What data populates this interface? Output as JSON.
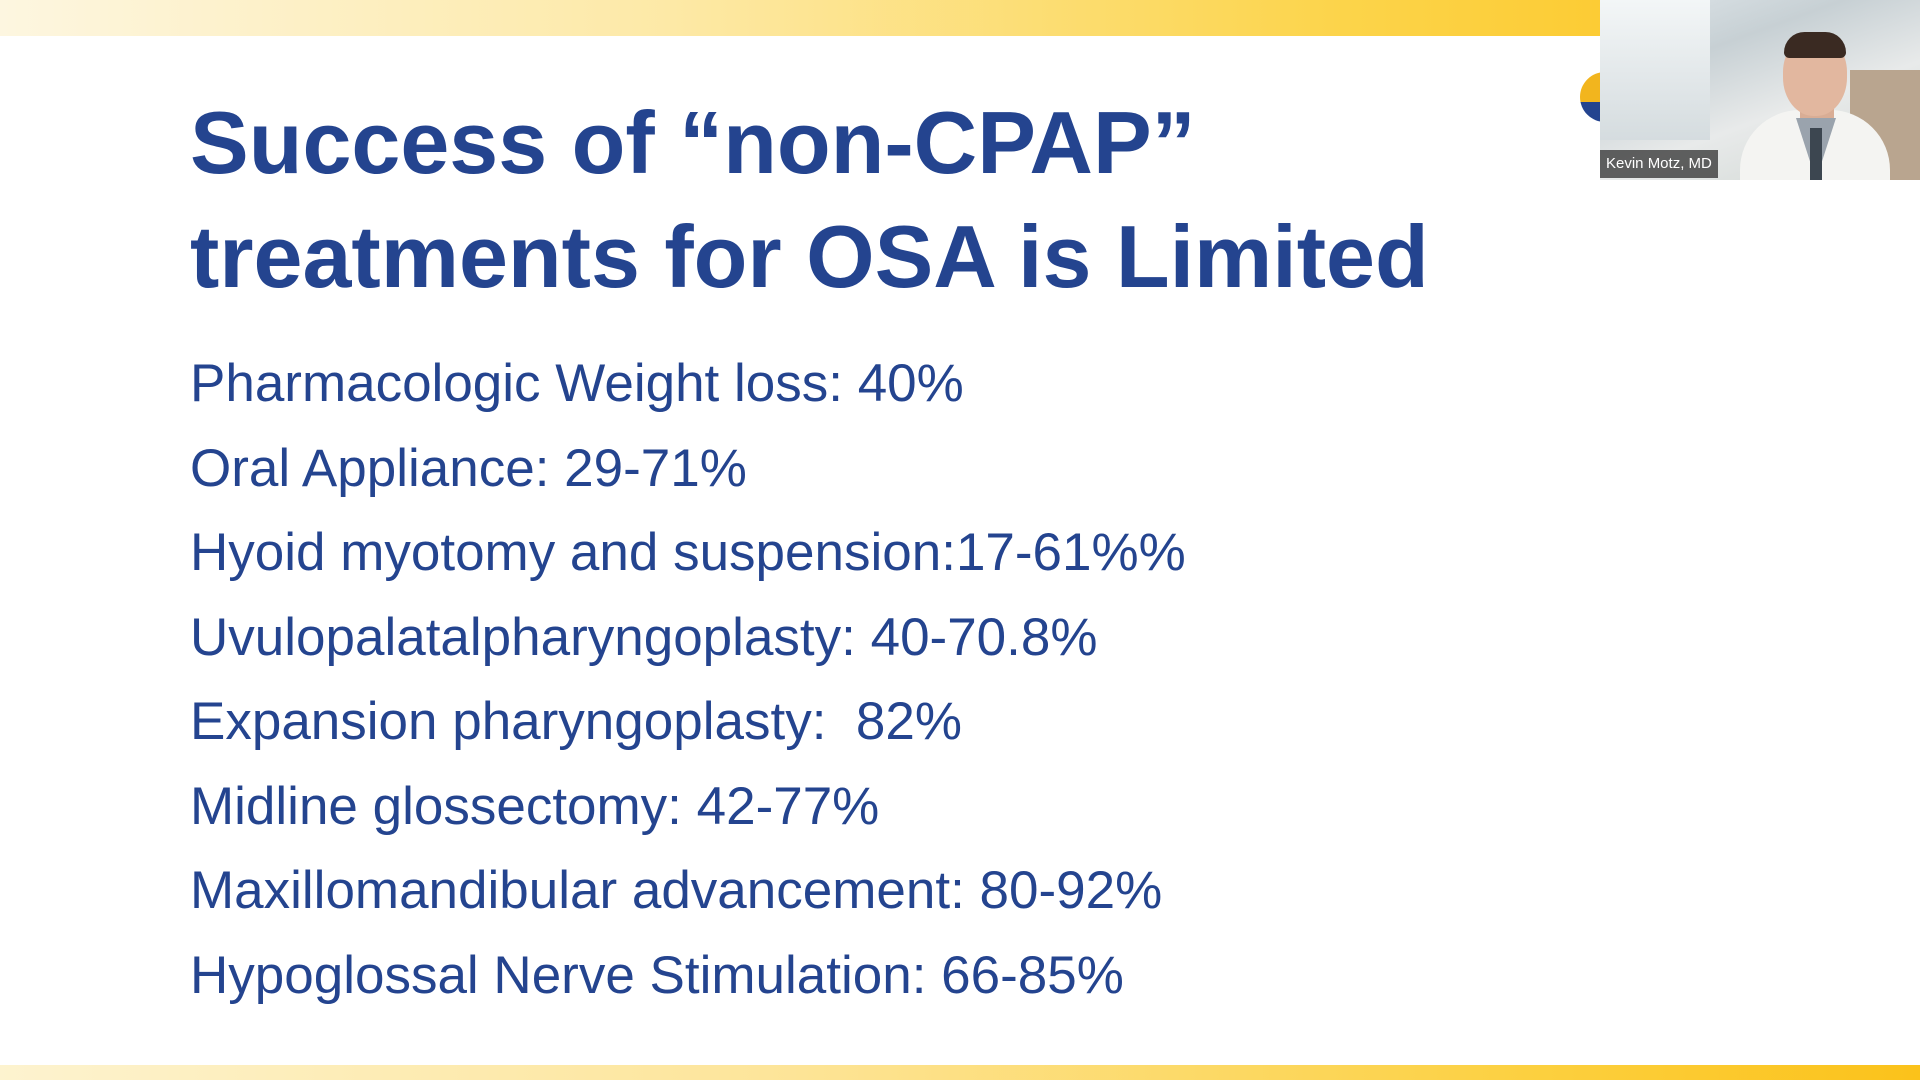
{
  "slide": {
    "title_lines": [
      "Success of “non-CPAP”",
      "treatments for OSA is Limited"
    ],
    "items": [
      "Pharmacologic Weight loss: 40%",
      "Oral Appliance: 29-71%",
      "Hyoid myotomy and suspension:17-61%%",
      "Uvulopalatalpharyngoplasty: 40-70.8%",
      "Expansion pharyngoplasty:  82%",
      "Midline glossectomy: 42-77%",
      "Maxillomandibular advancement: 80-92%",
      "Hypoglossal Nerve Stimulation: 66-85%"
    ]
  },
  "video": {
    "participant_name": "Kevin Motz, MD"
  },
  "colors": {
    "title_text": "#24448f",
    "accent_band": "#fbc21a",
    "background": "#ffffff"
  }
}
